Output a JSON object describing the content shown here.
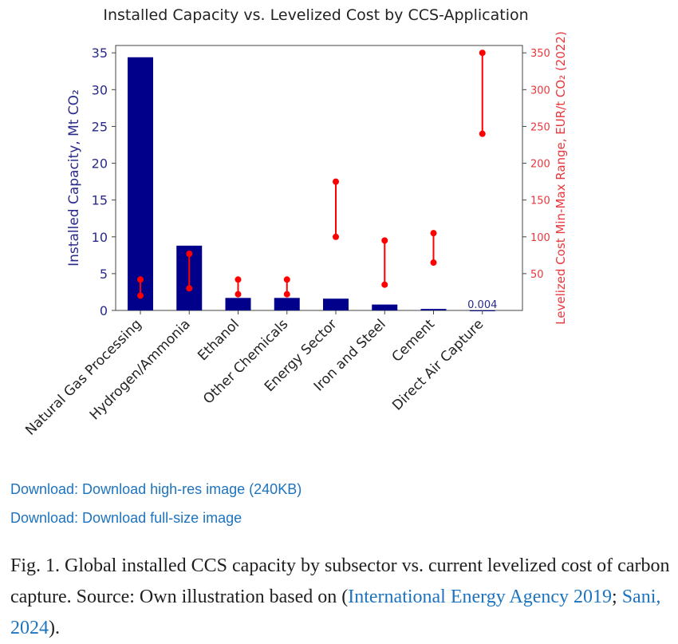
{
  "chart_data": {
    "type": "bar",
    "title": "Installed Capacity vs. Levelized Cost by CCS-Application",
    "categories": [
      "Natural Gas Processing",
      "Hydrogen/Ammonia",
      "Ethanol",
      "Other Chemicals",
      "Energy Sector",
      "Iron and Steel",
      "Cement",
      "Direct Air Capture"
    ],
    "series": [
      {
        "name": "Installed Capacity",
        "axis": "left",
        "type": "bar",
        "values": [
          34.4,
          8.8,
          1.7,
          1.7,
          1.6,
          0.8,
          0.2,
          0.004
        ]
      },
      {
        "name": "Levelized Cost Min-Max Range",
        "axis": "right",
        "type": "range",
        "min": [
          20,
          30,
          22,
          22,
          100,
          35,
          65,
          240
        ],
        "max": [
          42,
          77,
          42,
          42,
          175,
          95,
          105,
          350
        ]
      }
    ],
    "ylabel_left": "Installed Capacity, Mt CO₂",
    "ylabel_right": "Levelized Cost Min-Max Range, EUR/t CO₂ (2022)",
    "ylim_left": [
      0,
      36
    ],
    "ylim_right": [
      0,
      360
    ],
    "yticks_left": [
      0,
      5,
      10,
      15,
      20,
      25,
      30,
      35
    ],
    "yticks_right": [
      50,
      100,
      150,
      200,
      250,
      300,
      350
    ],
    "annotations": [
      {
        "category": "Direct Air Capture",
        "text": "0.004"
      }
    ],
    "grid": false,
    "colors": {
      "bar": "#00008b",
      "range": "#ff0000",
      "left_axis": "#2a2a8a",
      "right_axis": "#e8383d"
    }
  },
  "links": {
    "download_high_res": "Download: Download high-res image (240KB)",
    "download_full_size": "Download: Download full-size image"
  },
  "caption": {
    "text_1": "Fig. 1. Global installed CCS capacity by subsector vs. current levelized cost of carbon capture. Source: Own illustration based on (",
    "ref_1": "International Energy Agency 2019",
    "sep": "; ",
    "ref_2": "Sani, 2024",
    "text_2": ")."
  }
}
